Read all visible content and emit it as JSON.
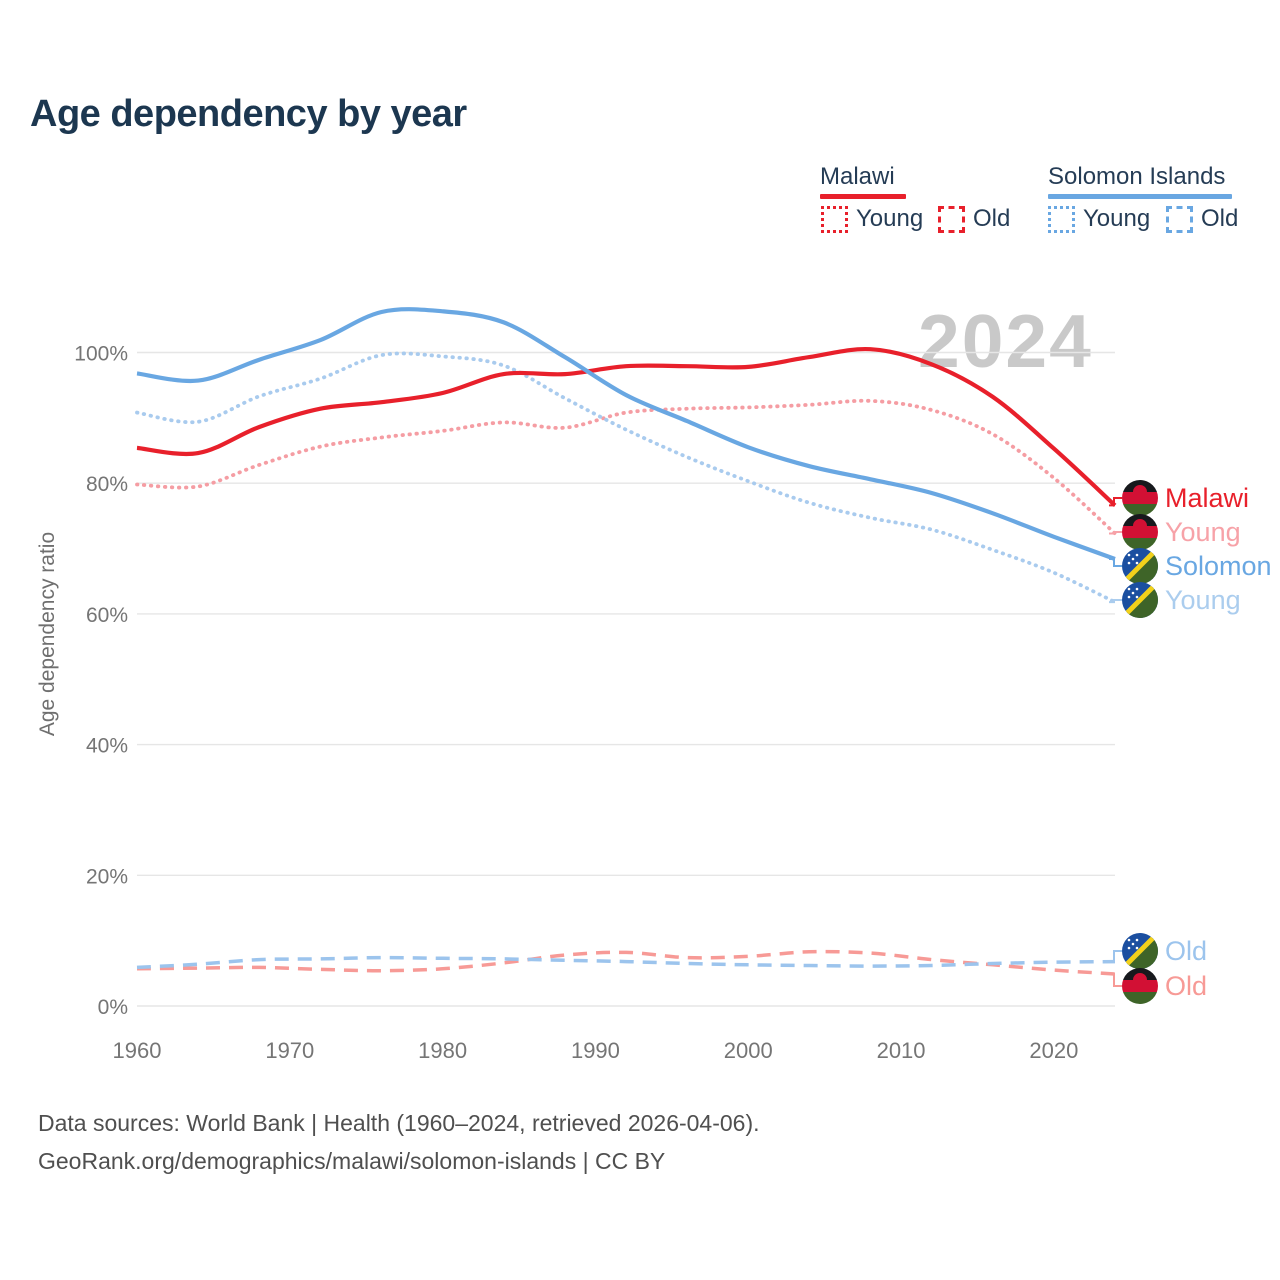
{
  "title": "Age dependency by year",
  "legend": {
    "malawi": {
      "label": "Malawi",
      "young": "Young",
      "old": "Old"
    },
    "solomon": {
      "label": "Solomon Islands",
      "young": "Young",
      "old": "Old"
    }
  },
  "watermark": "2024",
  "right_labels": [
    {
      "id": "malawi-total",
      "text": "Malawi",
      "color": "#e8202b",
      "flag": "malawi"
    },
    {
      "id": "malawi-young",
      "text": "Young",
      "color": "#f7a2a8",
      "flag": "malawi"
    },
    {
      "id": "solomon-total",
      "text": "Solomon",
      "color": "#69a7e2",
      "flag": "solomon"
    },
    {
      "id": "solomon-young",
      "text": "Young",
      "color": "#abcdee",
      "flag": "solomon"
    },
    {
      "id": "solomon-old",
      "text": "Old",
      "color": "#9cc4ed",
      "flag": "solomon"
    },
    {
      "id": "malawi-old",
      "text": "Old",
      "color": "#f79a96",
      "flag": "malawi"
    }
  ],
  "footer": {
    "line1": "Data sources: World Bank | Health (1960–2024, retrieved 2026-04-06).",
    "line2": "GeoRank.org/demographics/malawi/solomon-islands | CC BY"
  },
  "colors": {
    "malawi_solid": "#e8202b",
    "malawi_dotted": "#f59da3",
    "malawi_dashed": "#f79a96",
    "solomon_solid": "#69a7e2",
    "solomon_dotted": "#a9cbee",
    "solomon_dashed": "#9cc4ed",
    "grid": "#e6e6e6",
    "axis_text": "#757575",
    "title_text": "#1c3750",
    "watermark_text": "#c9c9c9"
  },
  "chart_data": {
    "type": "line",
    "title": "Age dependency by year",
    "xlabel": "",
    "ylabel": "Age dependency ratio",
    "xlim": [
      1960,
      2024
    ],
    "ylim": [
      0,
      110
    ],
    "grid": true,
    "legend_position": "top-right",
    "ytick_values": [
      0,
      20,
      40,
      60,
      80,
      100
    ],
    "ytick_labels": [
      "0%",
      "20%",
      "40%",
      "60%",
      "80%",
      "100%"
    ],
    "xtick_values": [
      1960,
      1970,
      1980,
      1990,
      2000,
      2010,
      2020
    ],
    "xtick_labels": [
      "1960",
      "1970",
      "1980",
      "1990",
      "2000",
      "2010",
      "2020"
    ],
    "x_years": [
      1960,
      1964,
      1968,
      1972,
      1976,
      1980,
      1984,
      1988,
      1992,
      1996,
      2000,
      2004,
      2008,
      2012,
      2016,
      2020,
      2024
    ],
    "series": [
      {
        "id": "malawi-old",
        "name": "Malawi Old",
        "style": "dashed",
        "color": "#f79a96",
        "values": [
          5.7,
          5.8,
          5.9,
          5.6,
          5.4,
          5.7,
          6.6,
          7.8,
          8.2,
          7.4,
          7.6,
          8.3,
          8.1,
          7.1,
          6.3,
          5.5,
          4.9
        ]
      },
      {
        "id": "solomon-old",
        "name": "Solomon Islands Old",
        "style": "dashed",
        "color": "#9cc4ed",
        "values": [
          5.9,
          6.4,
          7.1,
          7.2,
          7.4,
          7.3,
          7.2,
          7.0,
          6.8,
          6.5,
          6.3,
          6.2,
          6.1,
          6.2,
          6.5,
          6.7,
          6.8
        ]
      },
      {
        "id": "malawi-young",
        "name": "Malawi Young",
        "style": "dotted",
        "color": "#f59da3",
        "values": [
          79.8,
          79.5,
          82.8,
          85.6,
          87.0,
          88.0,
          89.3,
          88.5,
          90.8,
          91.4,
          91.6,
          92.0,
          92.6,
          91.2,
          87.5,
          80.8,
          72.3
        ]
      },
      {
        "id": "solomon-young",
        "name": "Solomon Islands Young",
        "style": "dotted",
        "color": "#a9cbee",
        "values": [
          90.8,
          89.4,
          93.3,
          96.0,
          99.6,
          99.4,
          98.0,
          93.0,
          88.2,
          84.0,
          80.3,
          77.0,
          74.7,
          72.9,
          69.8,
          66.3,
          61.8
        ]
      },
      {
        "id": "malawi-total",
        "name": "Malawi",
        "style": "solid",
        "color": "#e8202b",
        "values": [
          85.4,
          84.6,
          88.6,
          91.4,
          92.4,
          93.8,
          96.7,
          96.7,
          97.9,
          97.9,
          97.8,
          99.3,
          100.5,
          98.2,
          93.2,
          85.3,
          76.6
        ]
      },
      {
        "id": "solomon-total",
        "name": "Solomon Islands",
        "style": "solid",
        "color": "#69a7e2",
        "values": [
          96.8,
          95.7,
          98.9,
          101.9,
          106.2,
          106.3,
          104.6,
          99.3,
          93.5,
          89.5,
          85.5,
          82.6,
          80.6,
          78.5,
          75.4,
          71.8,
          68.4
        ]
      }
    ]
  }
}
